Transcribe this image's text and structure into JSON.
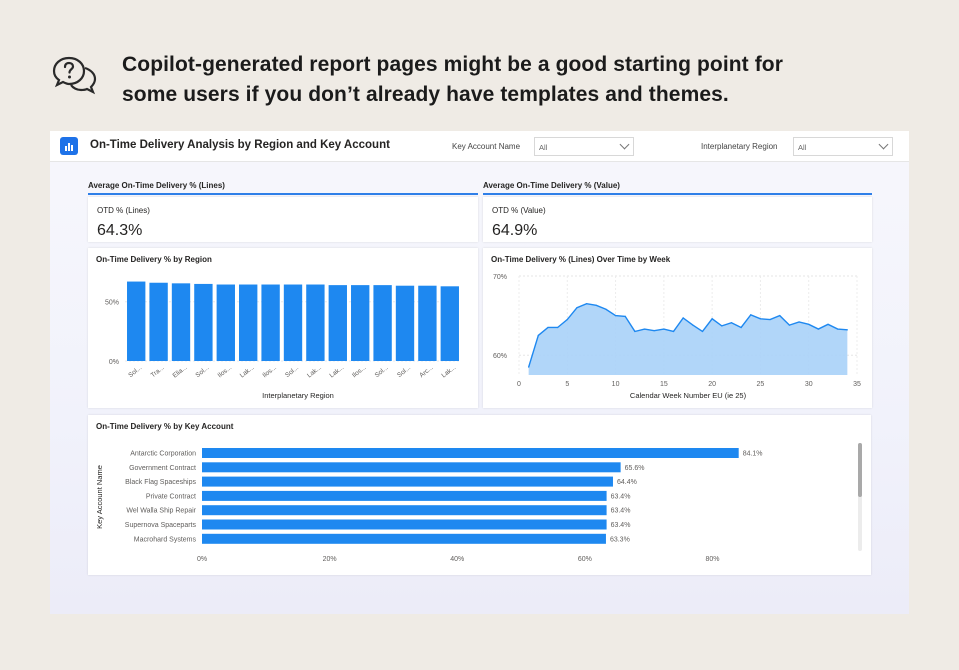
{
  "tip": {
    "icon": "chat-question-icon",
    "line1": "Copilot-generated report pages might be a good starting point for",
    "line2": "some users if you don’t already have templates and themes."
  },
  "report": {
    "title": "On-Time Delivery Analysis by Region and Key Account",
    "slicers": [
      {
        "label": "Key Account Name",
        "value": "All"
      },
      {
        "label": "Interplanetary Region",
        "value": "All"
      }
    ],
    "kpi_left": {
      "heading": "Average On-Time Delivery % (Lines)",
      "label": "OTD % (Lines)",
      "value": "64.3%"
    },
    "kpi_right": {
      "heading": "Average On-Time Delivery % (Value)",
      "label": "OTD % (Value)",
      "value": "64.9%"
    },
    "region_chart_title": "On-Time Delivery % by Region",
    "week_chart_title": "On-Time Delivery % (Lines) Over Time by Week",
    "account_chart_title": "On-Time Delivery % by Key Account"
  },
  "colors": {
    "accent": "#1e88f0",
    "area_fill": "#a9d1f8",
    "area_line": "#1e88f0"
  },
  "chart_data": [
    {
      "type": "bar",
      "title": "On-Time Delivery % by Region",
      "xlabel": "Interplanetary Region",
      "ylabel": "",
      "categories": [
        "Sol...",
        "Tra...",
        "Elia...",
        "Sol...",
        "Ilos...",
        "Lak...",
        "Ilos...",
        "Sol...",
        "Lak...",
        "Lak...",
        "Ilos...",
        "Sol...",
        "Sol...",
        "Arc...",
        "Lak..."
      ],
      "values": [
        67,
        66,
        65.5,
        65,
        64.5,
        64.5,
        64.5,
        64.5,
        64.5,
        64,
        64,
        64,
        63.5,
        63.5,
        63
      ],
      "ylim": [
        0,
        70
      ],
      "yticks": [
        0,
        50
      ],
      "ytick_labels": [
        "0%",
        "50%"
      ]
    },
    {
      "type": "area",
      "title": "On-Time Delivery % (Lines) Over Time by Week",
      "xlabel": "Calendar Week Number EU (ie 25)",
      "ylabel": "",
      "x": [
        1,
        2,
        3,
        4,
        5,
        6,
        7,
        8,
        9,
        10,
        11,
        12,
        13,
        14,
        15,
        16,
        17,
        18,
        19,
        20,
        21,
        22,
        23,
        24,
        25,
        26,
        27,
        28,
        29,
        30,
        31,
        32,
        33,
        34
      ],
      "values": [
        58.5,
        62.5,
        63.5,
        63.5,
        64.5,
        66,
        66.5,
        66.3,
        65.8,
        65,
        64.9,
        63,
        63.3,
        63.1,
        63.3,
        63,
        64.7,
        63.8,
        63,
        64.6,
        63.7,
        64.1,
        63.5,
        65.1,
        64.6,
        64.5,
        65,
        63.8,
        64.2,
        63.9,
        63.3,
        63.9,
        63.3,
        63.2
      ],
      "ylim": [
        57.5,
        70
      ],
      "yticks": [
        60,
        70
      ],
      "ytick_labels": [
        "60%",
        "70%"
      ],
      "xticks": [
        0,
        5,
        10,
        15,
        20,
        25,
        30,
        35
      ]
    },
    {
      "type": "bar",
      "orientation": "horizontal",
      "title": "On-Time Delivery % by Key Account",
      "xlabel": "",
      "ylabel": "Key Account Name",
      "categories": [
        "Antarctic Corporation",
        "Government Contract",
        "Black Flag Spaceships",
        "Private Contract",
        "Wel Walla Ship Repair",
        "Supernova Spaceparts",
        "Macrohard Systems"
      ],
      "values": [
        84.1,
        65.6,
        64.4,
        63.4,
        63.4,
        63.4,
        63.3
      ],
      "data_labels": [
        "84.1%",
        "65.6%",
        "64.4%",
        "63.4%",
        "63.4%",
        "63.4%",
        "63.3%"
      ],
      "xlim": [
        0,
        88
      ],
      "xticks": [
        0,
        20,
        40,
        60,
        80
      ],
      "xtick_labels": [
        "0%",
        "20%",
        "40%",
        "60%",
        "80%"
      ]
    }
  ]
}
